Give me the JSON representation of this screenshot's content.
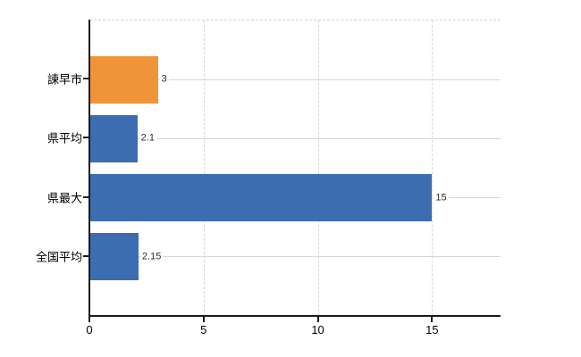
{
  "chart_data": {
    "type": "bar",
    "orientation": "horizontal",
    "title": "",
    "xlabel": "",
    "ylabel": "",
    "categories": [
      "諫早市",
      "県平均",
      "県最大",
      "全国平均"
    ],
    "values": [
      3,
      2.1,
      15,
      2.15
    ],
    "value_labels": [
      "3",
      "2.1",
      "15",
      "2.15"
    ],
    "bar_colors": [
      "#ef9439",
      "#3c6db0",
      "#3c6db0",
      "#3c6db0"
    ],
    "x_ticks": [
      0,
      5,
      10,
      15
    ],
    "x_tick_labels": [
      "0",
      "5",
      "10",
      "15"
    ],
    "xlim": [
      0,
      18
    ],
    "grid": "dashed vertical gridlines at x ticks; light horizontal line at each category center; dashed top border",
    "legend": "none",
    "colors": {
      "axis": "#1a1a1a",
      "gridline": "#d6d6d6",
      "category_line": "#d2d7d2",
      "value_label_text": "#2b2b2b",
      "background": "#ffffff"
    }
  }
}
